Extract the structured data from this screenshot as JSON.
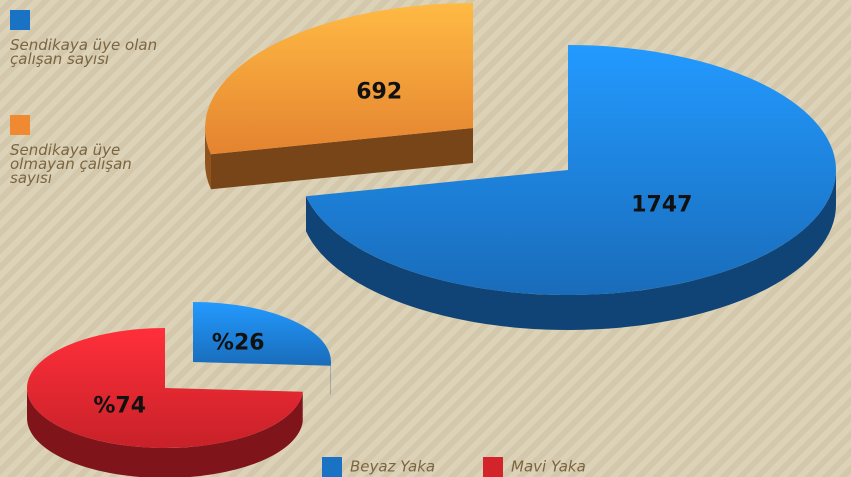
{
  "chart_data": [
    {
      "type": "pie3d",
      "categories": [
        "Sendikaya üye olan çalışan sayısı",
        "Sendikaya üye olmayan çalışan sayısı"
      ],
      "values": [
        1747,
        692
      ],
      "colors": [
        "#1a72c4",
        "#f08a32"
      ],
      "legend_position": "top-left"
    },
    {
      "type": "pie3d",
      "categories": [
        "Beyaz Yaka",
        "Mavi Yaka"
      ],
      "values": [
        26,
        74
      ],
      "value_labels": [
        "%26",
        "%74"
      ],
      "colors": [
        "#1a72c4",
        "#d3232b"
      ],
      "legend_position": "bottom"
    }
  ]
}
